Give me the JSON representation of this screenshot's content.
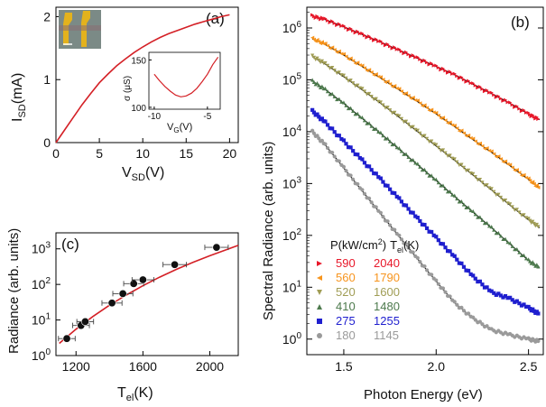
{
  "chart_data": [
    {
      "panel": "(a)",
      "type": "line",
      "xlabel_main": "V",
      "xlabel_sub": "SD",
      "xlabel_unit": "(V)",
      "ylabel_main": "I",
      "ylabel_sub": "SD",
      "ylabel_unit": "(mA)",
      "xlim": [
        0,
        21
      ],
      "ylim": [
        0,
        2.15
      ],
      "xticks": [
        "0",
        "5",
        "10",
        "15",
        "20"
      ],
      "yticks": [
        "0",
        "1",
        "2"
      ],
      "color": "#d42026",
      "x": [
        0,
        1,
        2,
        3,
        4,
        5,
        6,
        7,
        8,
        9,
        10,
        11,
        12,
        13,
        14,
        15,
        16,
        17,
        18,
        19,
        20
      ],
      "y": [
        0,
        0.2,
        0.4,
        0.6,
        0.78,
        0.95,
        1.09,
        1.22,
        1.33,
        1.43,
        1.52,
        1.6,
        1.67,
        1.73,
        1.78,
        1.83,
        1.88,
        1.92,
        1.96,
        2.0,
        2.03
      ],
      "inset": {
        "type": "line",
        "xlabel_main": "V",
        "xlabel_sub": "G",
        "xlabel_unit": "(V)",
        "ylabel": "σ (μS)",
        "xlim": [
          -10.5,
          -3.8
        ],
        "ylim": [
          98,
          158
        ],
        "xticks": [
          "-10",
          "-5"
        ],
        "yticks": [
          "100",
          "150"
        ],
        "x": [
          -10,
          -9.5,
          -9,
          -8.5,
          -8,
          -7.5,
          -7,
          -6.5,
          -6,
          -5.5,
          -5,
          -4.5,
          -4
        ],
        "y": [
          135,
          128,
          122,
          117,
          113,
          111,
          112,
          115,
          120,
          127,
          135,
          145,
          153
        ]
      }
    },
    {
      "panel": "(b)",
      "type": "scatter",
      "xlabel": "Photon Energy (eV)",
      "ylabel": "Spectral Radiance (arb. units)",
      "xlim": [
        1.3,
        2.58
      ],
      "ylim_log10": [
        -0.3,
        6.4
      ],
      "yscale": "log",
      "xticks": [
        "1.5",
        "2.0",
        "2.5"
      ],
      "ytick_exponents": [
        "0",
        "1",
        "2",
        "3",
        "4",
        "5",
        "6"
      ],
      "legend_header_p": "P(kW/cm",
      "legend_header_p_sup": "2",
      "legend_header_p_end": ")",
      "legend_header_t": "T",
      "legend_header_t_sub": "el",
      "legend_header_t_end": "(K)",
      "series": [
        {
          "p": "590",
          "t": "2040",
          "color": "#e8182a",
          "marker": "triangle-right",
          "x": [
            1.33,
            1.4,
            1.5,
            1.6,
            1.7,
            1.8,
            1.9,
            2.0,
            2.1,
            2.2,
            2.3,
            2.4,
            2.5,
            2.56
          ],
          "y": [
            1700000.0,
            1450000.0,
            1050000.0,
            750000.0,
            530000.0,
            370000.0,
            260000.0,
            180000.0,
            125000.0,
            82000.0,
            54000.0,
            35000.0,
            22000.0,
            17000.0
          ]
        },
        {
          "p": "560",
          "t": "1790",
          "color": "#f7941d",
          "marker": "triangle-left",
          "x": [
            1.33,
            1.4,
            1.5,
            1.6,
            1.7,
            1.8,
            1.9,
            2.0,
            2.1,
            2.2,
            2.3,
            2.4,
            2.5,
            2.56
          ],
          "y": [
            620000.0,
            480000.0,
            300000.0,
            180000.0,
            108000.0,
            64000.0,
            38000.0,
            22000.0,
            12500.0,
            7000.0,
            4000.0,
            2200.0,
            1200.0,
            800.0
          ]
        },
        {
          "p": "520",
          "t": "1600",
          "color": "#a09d55",
          "marker": "triangle-down",
          "x": [
            1.33,
            1.4,
            1.5,
            1.6,
            1.7,
            1.8,
            1.9,
            2.0,
            2.1,
            2.2,
            2.3,
            2.4,
            2.5,
            2.56
          ],
          "y": [
            280000.0,
            200000.0,
            115000.0,
            64000.0,
            35000.0,
            19000.0,
            10000.0,
            5300.0,
            2800.0,
            1450.0,
            750.0,
            380.0,
            200.0,
            140.0
          ]
        },
        {
          "p": "410",
          "t": "1480",
          "color": "#4d7a4d",
          "marker": "triangle-up",
          "x": [
            1.33,
            1.4,
            1.5,
            1.6,
            1.7,
            1.8,
            1.9,
            2.0,
            2.1,
            2.2,
            2.3,
            2.4,
            2.5,
            2.56
          ],
          "y": [
            95000.0,
            65000.0,
            35000.0,
            18000.0,
            9200.0,
            4600.0,
            2300.0,
            1150.0,
            560.0,
            280.0,
            140.0,
            68,
            33,
            24
          ]
        },
        {
          "p": "275",
          "t": "1255",
          "color": "#1f1fcf",
          "marker": "square",
          "x": [
            1.33,
            1.4,
            1.5,
            1.6,
            1.7,
            1.8,
            1.9,
            2.0,
            2.1,
            2.2,
            2.3,
            2.4,
            2.5,
            2.56
          ],
          "y": [
            25000.0,
            15000.0,
            6500.0,
            2800.0,
            1200.0,
            500.0,
            210.0,
            90,
            38,
            16,
            8,
            6,
            4,
            3
          ]
        },
        {
          "p": "180",
          "t": "1145",
          "color": "#9a9a9a",
          "marker": "circle",
          "x": [
            1.33,
            1.4,
            1.5,
            1.6,
            1.7,
            1.8,
            1.9,
            2.0,
            2.1,
            2.2,
            2.3,
            2.4,
            2.5,
            2.56
          ],
          "y": [
            10000.0,
            5500.0,
            2000.0,
            720.0,
            260.0,
            95,
            35,
            13,
            5,
            2.5,
            1.5,
            1.2,
            1.0,
            0.9
          ]
        }
      ]
    },
    {
      "panel": "(c)",
      "type": "scatter",
      "xlabel_main": "T",
      "xlabel_sub": "el",
      "xlabel_unit": "(K)",
      "ylabel": "Radiance (arb. units)",
      "xlim": [
        1080,
        2170
      ],
      "ylim_log10": [
        0,
        3.45
      ],
      "yscale": "log",
      "xticks": [
        "1200",
        "1600",
        "2000"
      ],
      "ytick_exponents": [
        "0",
        "1",
        "2",
        "3"
      ],
      "fit_color": "#d42026",
      "points": [
        {
          "x": 1145,
          "y": 3.0,
          "xerr": 50
        },
        {
          "x": 1230,
          "y": 7.0,
          "xerr": 50
        },
        {
          "x": 1255,
          "y": 9.0,
          "xerr": 50
        },
        {
          "x": 1415,
          "y": 30,
          "xerr": 60
        },
        {
          "x": 1480,
          "y": 55,
          "xerr": 60
        },
        {
          "x": 1545,
          "y": 105,
          "xerr": 60
        },
        {
          "x": 1600,
          "y": 135,
          "xerr": 65
        },
        {
          "x": 1790,
          "y": 360,
          "xerr": 70
        },
        {
          "x": 2040,
          "y": 1100,
          "xerr": 70
        }
      ],
      "fit_x": [
        1100,
        1200,
        1300,
        1400,
        1500,
        1600,
        1700,
        1800,
        1900,
        2000,
        2100,
        2170
      ],
      "fit_y": [
        2.2,
        5.5,
        12.5,
        26,
        50,
        92,
        160,
        265,
        420,
        640,
        950,
        1250
      ]
    }
  ]
}
